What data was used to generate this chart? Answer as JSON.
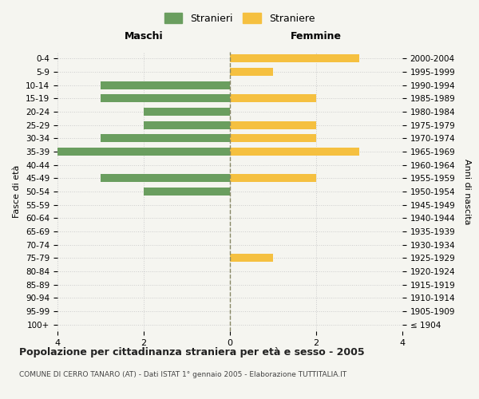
{
  "age_groups": [
    "100+",
    "95-99",
    "90-94",
    "85-89",
    "80-84",
    "75-79",
    "70-74",
    "65-69",
    "60-64",
    "55-59",
    "50-54",
    "45-49",
    "40-44",
    "35-39",
    "30-34",
    "25-29",
    "20-24",
    "15-19",
    "10-14",
    "5-9",
    "0-4"
  ],
  "birth_years": [
    "≤ 1904",
    "1905-1909",
    "1910-1914",
    "1915-1919",
    "1920-1924",
    "1925-1929",
    "1930-1934",
    "1935-1939",
    "1940-1944",
    "1945-1949",
    "1950-1954",
    "1955-1959",
    "1960-1964",
    "1965-1969",
    "1970-1974",
    "1975-1979",
    "1980-1984",
    "1985-1989",
    "1990-1994",
    "1995-1999",
    "2000-2004"
  ],
  "males": [
    0,
    0,
    0,
    0,
    0,
    0,
    0,
    0,
    0,
    0,
    2,
    3,
    0,
    4,
    3,
    2,
    2,
    3,
    3,
    0,
    0
  ],
  "females": [
    0,
    0,
    0,
    0,
    0,
    1,
    0,
    0,
    0,
    0,
    0,
    2,
    0,
    3,
    2,
    2,
    0,
    2,
    0,
    1,
    3
  ],
  "male_color": "#6a9e5f",
  "female_color": "#f5c040",
  "background_color": "#f5f5f0",
  "grid_color": "#cccccc",
  "center_line_color": "#888866",
  "xlim": 4,
  "title": "Popolazione per cittadinanza straniera per età e sesso - 2005",
  "subtitle": "COMUNE DI CERRO TANARO (AT) - Dati ISTAT 1° gennaio 2005 - Elaborazione TUTTITALIA.IT",
  "ylabel_left": "Fasce di età",
  "ylabel_right": "Anni di nascita",
  "header_left": "Maschi",
  "header_right": "Femmine",
  "legend_stranieri": "Stranieri",
  "legend_straniere": "Straniere"
}
